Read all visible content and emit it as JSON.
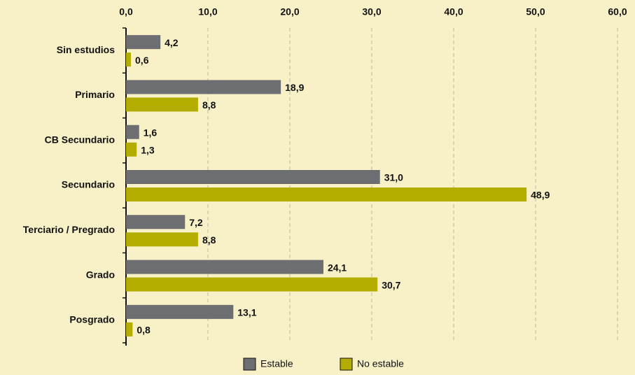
{
  "chart_data": {
    "type": "hbar",
    "categories": [
      "Sin estudios",
      "Primario",
      "CB Secundario",
      "Secundario",
      "Terciario / Pregrado",
      "Grado",
      "Posgrado"
    ],
    "series": [
      {
        "name": "Estable",
        "color": "#6d6e71",
        "values": [
          4.2,
          18.9,
          1.6,
          31.0,
          7.2,
          24.1,
          13.1
        ],
        "value_labels": [
          "4,2",
          "18,9",
          "1,6",
          "31,0",
          "7,2",
          "24,1",
          "13,1"
        ]
      },
      {
        "name": "No estable",
        "color": "#b3ad00",
        "values": [
          0.6,
          8.8,
          1.3,
          48.9,
          8.8,
          30.7,
          0.8
        ],
        "value_labels": [
          "0,6",
          "8,8",
          "1,3",
          "48,9",
          "8,8",
          "30,7",
          "0,8"
        ]
      }
    ],
    "xlim": [
      0,
      60
    ],
    "xticks": [
      {
        "value": 0,
        "label": "0,0"
      },
      {
        "value": 10,
        "label": "10,0"
      },
      {
        "value": 20,
        "label": "20,0"
      },
      {
        "value": 30,
        "label": "30,0"
      },
      {
        "value": 40,
        "label": "40,0"
      },
      {
        "value": 50,
        "label": "50,0"
      },
      {
        "value": 60,
        "label": "60,0"
      }
    ],
    "grid": true,
    "legend": "bottom"
  }
}
